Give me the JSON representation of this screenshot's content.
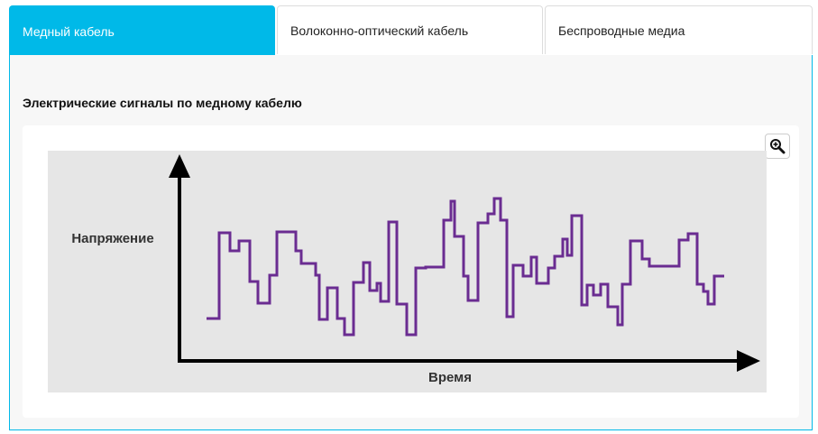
{
  "tabs": [
    {
      "label": "Медный кабель",
      "active": true
    },
    {
      "label": "Волоконно-оптический кабель",
      "active": false
    },
    {
      "label": "Беспроводные медиа",
      "active": false
    }
  ],
  "panel": {
    "title": "Электрические сигналы по медному кабелю"
  },
  "figure": {
    "ylabel": "Напряжение",
    "xlabel": "Время",
    "zoom_icon": "zoom-in-icon",
    "colors": {
      "accent": "#00b9e8",
      "signal": "#6a2c91",
      "plot_bg": "#e6e6e6",
      "axis": "#000000"
    }
  }
}
